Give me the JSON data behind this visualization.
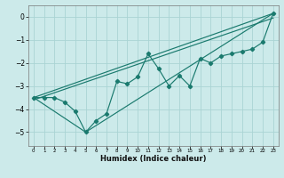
{
  "xlabel": "Humidex (Indice chaleur)",
  "bg_color": "#cceaea",
  "grid_color": "#aad4d4",
  "line_color": "#1a7a6e",
  "xlim": [
    -0.5,
    23.5
  ],
  "ylim": [
    -5.6,
    0.5
  ],
  "yticks": [
    0,
    -1,
    -2,
    -3,
    -4,
    -5
  ],
  "xticks": [
    0,
    1,
    2,
    3,
    4,
    5,
    6,
    7,
    8,
    9,
    10,
    11,
    12,
    13,
    14,
    15,
    16,
    17,
    18,
    19,
    20,
    21,
    22,
    23
  ],
  "scatter_x": [
    0,
    1,
    2,
    3,
    4,
    5,
    6,
    7,
    8,
    9,
    10,
    11,
    12,
    13,
    14,
    15,
    16,
    17,
    18,
    19,
    20,
    21,
    22,
    23
  ],
  "scatter_y": [
    -3.5,
    -3.5,
    -3.5,
    -3.7,
    -4.1,
    -5.0,
    -4.5,
    -4.2,
    -2.8,
    -2.9,
    -2.6,
    -1.6,
    -2.25,
    -3.0,
    -2.55,
    -3.0,
    -1.8,
    -2.0,
    -1.7,
    -1.6,
    -1.5,
    -1.4,
    -1.1,
    0.15
  ],
  "line1_x": [
    0,
    23
  ],
  "line1_y": [
    -3.5,
    0.15
  ],
  "line2_x": [
    0,
    5,
    23
  ],
  "line2_y": [
    -3.5,
    -5.0,
    0.15
  ],
  "line3_x": [
    0,
    23
  ],
  "line3_y": [
    -3.6,
    -0.05
  ]
}
